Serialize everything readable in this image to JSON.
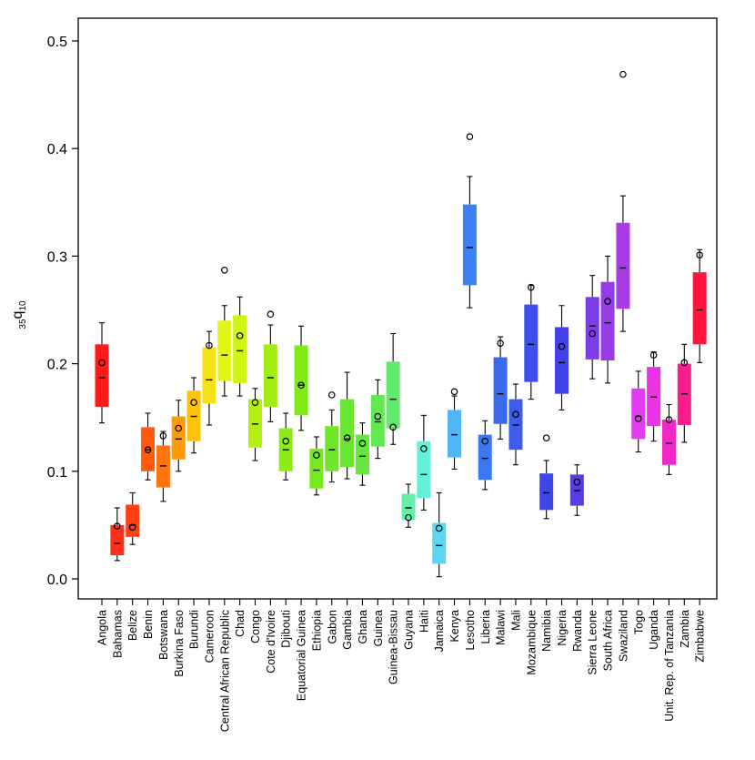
{
  "chart_data": {
    "type": "box",
    "title": "",
    "xlabel": "",
    "ylabel": {
      "base": "35",
      "main": "q",
      "sub": "10"
    },
    "ylim": [
      0.0,
      0.52
    ],
    "yticks": [
      "0.0",
      "0.1",
      "0.2",
      "0.3",
      "0.4",
      "0.5"
    ],
    "grid": false,
    "series": [
      {
        "name": "Angola",
        "color": "#FF1A1A",
        "whisker_low": 0.145,
        "q1": 0.16,
        "median": 0.187,
        "q3": 0.218,
        "whisker_high": 0.238,
        "point": 0.201
      },
      {
        "name": "Bahamas",
        "color": "#FF2E17",
        "whisker_low": 0.017,
        "q1": 0.022,
        "median": 0.033,
        "q3": 0.05,
        "whisker_high": 0.066,
        "point": 0.049
      },
      {
        "name": "Belize",
        "color": "#FF3F14",
        "whisker_low": 0.032,
        "q1": 0.039,
        "median": 0.05,
        "q3": 0.069,
        "whisker_high": 0.08,
        "point": 0.048
      },
      {
        "name": "Benin",
        "color": "#FF5A0F",
        "whisker_low": 0.092,
        "q1": 0.1,
        "median": 0.12,
        "q3": 0.141,
        "whisker_high": 0.154,
        "point": 0.12
      },
      {
        "name": "Botswana",
        "color": "#FF750C",
        "whisker_low": 0.072,
        "q1": 0.085,
        "median": 0.105,
        "q3": 0.124,
        "whisker_high": 0.137,
        "point": 0.133
      },
      {
        "name": "Burkina Faso",
        "color": "#FF9A0A",
        "whisker_low": 0.1,
        "q1": 0.111,
        "median": 0.13,
        "q3": 0.151,
        "whisker_high": 0.166,
        "point": 0.14
      },
      {
        "name": "Burundi",
        "color": "#FFC20A",
        "whisker_low": 0.117,
        "q1": 0.128,
        "median": 0.151,
        "q3": 0.175,
        "whisker_high": 0.187,
        "point": 0.164
      },
      {
        "name": "Cameroon",
        "color": "#F5E214",
        "whisker_low": 0.143,
        "q1": 0.163,
        "median": 0.185,
        "q3": 0.215,
        "whisker_high": 0.23,
        "point": 0.217
      },
      {
        "name": "Central African Republic",
        "color": "#E2F514",
        "whisker_low": 0.17,
        "q1": 0.184,
        "median": 0.208,
        "q3": 0.24,
        "whisker_high": 0.254,
        "point": 0.287
      },
      {
        "name": "Chad",
        "color": "#D0F514",
        "whisker_low": 0.17,
        "q1": 0.182,
        "median": 0.212,
        "q3": 0.245,
        "whisker_high": 0.262,
        "point": 0.226
      },
      {
        "name": "Congo",
        "color": "#B4EE14",
        "whisker_low": 0.11,
        "q1": 0.122,
        "median": 0.144,
        "q3": 0.167,
        "whisker_high": 0.177,
        "point": 0.164
      },
      {
        "name": "Cote d'Ivoire",
        "color": "#A0EE14",
        "whisker_low": 0.146,
        "q1": 0.16,
        "median": 0.187,
        "q3": 0.218,
        "whisker_high": 0.236,
        "point": 0.246
      },
      {
        "name": "Djibouti",
        "color": "#8EEB14",
        "whisker_low": 0.092,
        "q1": 0.1,
        "median": 0.12,
        "q3": 0.14,
        "whisker_high": 0.154,
        "point": 0.128
      },
      {
        "name": "Equatorial Guinea",
        "color": "#80EB14",
        "whisker_low": 0.138,
        "q1": 0.152,
        "median": 0.18,
        "q3": 0.217,
        "whisker_high": 0.235,
        "point": 0.18
      },
      {
        "name": "Ethiopia",
        "color": "#78E81E",
        "whisker_low": 0.078,
        "q1": 0.084,
        "median": 0.101,
        "q3": 0.121,
        "whisker_high": 0.132,
        "point": 0.115
      },
      {
        "name": "Gabon",
        "color": "#70E628",
        "whisker_low": 0.09,
        "q1": 0.1,
        "median": 0.12,
        "q3": 0.142,
        "whisker_high": 0.157,
        "point": 0.171
      },
      {
        "name": "Gambia",
        "color": "#6AE530",
        "whisker_low": 0.093,
        "q1": 0.104,
        "median": 0.13,
        "q3": 0.167,
        "whisker_high": 0.192,
        "point": 0.131
      },
      {
        "name": "Ghana",
        "color": "#66E63C",
        "whisker_low": 0.087,
        "q1": 0.097,
        "median": 0.114,
        "q3": 0.134,
        "whisker_high": 0.145,
        "point": 0.126
      },
      {
        "name": "Guinea",
        "color": "#62E850",
        "whisker_low": 0.112,
        "q1": 0.123,
        "median": 0.146,
        "q3": 0.171,
        "whisker_high": 0.185,
        "point": 0.151
      },
      {
        "name": "Guinea-Bissau",
        "color": "#62EA6A",
        "whisker_low": 0.125,
        "q1": 0.14,
        "median": 0.167,
        "q3": 0.202,
        "whisker_high": 0.228,
        "point": 0.141
      },
      {
        "name": "Guyana",
        "color": "#64EEA8",
        "whisker_low": 0.048,
        "q1": 0.055,
        "median": 0.066,
        "q3": 0.079,
        "whisker_high": 0.088,
        "point": 0.057
      },
      {
        "name": "Haiti",
        "color": "#64F0D8",
        "whisker_low": 0.064,
        "q1": 0.075,
        "median": 0.097,
        "q3": 0.128,
        "whisker_high": 0.152,
        "point": 0.121
      },
      {
        "name": "Jamaica",
        "color": "#5CD6F0",
        "whisker_low": 0.002,
        "q1": 0.014,
        "median": 0.031,
        "q3": 0.052,
        "whisker_high": 0.08,
        "point": 0.047
      },
      {
        "name": "Kenya",
        "color": "#50B4F5",
        "whisker_low": 0.102,
        "q1": 0.113,
        "median": 0.134,
        "q3": 0.157,
        "whisker_high": 0.17,
        "point": 0.174
      },
      {
        "name": "Lesotho",
        "color": "#3C82F5",
        "whisker_low": 0.252,
        "q1": 0.273,
        "median": 0.308,
        "q3": 0.348,
        "whisker_high": 0.374,
        "point": 0.411
      },
      {
        "name": "Liberia",
        "color": "#3A78F0",
        "whisker_low": 0.083,
        "q1": 0.092,
        "median": 0.112,
        "q3": 0.134,
        "whisker_high": 0.147,
        "point": 0.128
      },
      {
        "name": "Malawi",
        "color": "#3A6AEE",
        "whisker_low": 0.13,
        "q1": 0.144,
        "median": 0.172,
        "q3": 0.206,
        "whisker_high": 0.225,
        "point": 0.219
      },
      {
        "name": "Mali",
        "color": "#3C5CEE",
        "whisker_low": 0.106,
        "q1": 0.12,
        "median": 0.143,
        "q3": 0.167,
        "whisker_high": 0.181,
        "point": 0.153
      },
      {
        "name": "Mozambique",
        "color": "#3E4EEE",
        "whisker_low": 0.167,
        "q1": 0.183,
        "median": 0.218,
        "q3": 0.255,
        "whisker_high": 0.273,
        "point": 0.271
      },
      {
        "name": "Namibia",
        "color": "#3E46EA",
        "whisker_low": 0.056,
        "q1": 0.064,
        "median": 0.08,
        "q3": 0.098,
        "whisker_high": 0.11,
        "point": 0.131
      },
      {
        "name": "Nigeria",
        "color": "#4242EA",
        "whisker_low": 0.157,
        "q1": 0.172,
        "median": 0.201,
        "q3": 0.234,
        "whisker_high": 0.254,
        "point": 0.216
      },
      {
        "name": "Rwanda",
        "color": "#5A3CE6",
        "whisker_low": 0.059,
        "q1": 0.068,
        "median": 0.082,
        "q3": 0.097,
        "whisker_high": 0.106,
        "point": 0.09
      },
      {
        "name": "Sierra Leone",
        "color": "#7C3CE6",
        "whisker_low": 0.186,
        "q1": 0.204,
        "median": 0.235,
        "q3": 0.262,
        "whisker_high": 0.282,
        "point": 0.228
      },
      {
        "name": "South Africa",
        "color": "#963CE6",
        "whisker_low": 0.182,
        "q1": 0.203,
        "median": 0.238,
        "q3": 0.276,
        "whisker_high": 0.3,
        "point": 0.258
      },
      {
        "name": "Swaziland",
        "color": "#AA3CE6",
        "whisker_low": 0.23,
        "q1": 0.251,
        "median": 0.289,
        "q3": 0.331,
        "whisker_high": 0.356,
        "point": 0.469
      },
      {
        "name": "Togo",
        "color": "#E03CF0",
        "whisker_low": 0.118,
        "q1": 0.13,
        "median": 0.151,
        "q3": 0.177,
        "whisker_high": 0.193,
        "point": 0.149
      },
      {
        "name": "Uganda",
        "color": "#EC32E6",
        "whisker_low": 0.128,
        "q1": 0.142,
        "median": 0.169,
        "q3": 0.197,
        "whisker_high": 0.211,
        "point": 0.208
      },
      {
        "name": "Unit. Rep. of Tanzania",
        "color": "#F028C8",
        "whisker_low": 0.097,
        "q1": 0.106,
        "median": 0.126,
        "q3": 0.148,
        "whisker_high": 0.162,
        "point": 0.148
      },
      {
        "name": "Zambia",
        "color": "#F51E8C",
        "whisker_low": 0.127,
        "q1": 0.143,
        "median": 0.172,
        "q3": 0.2,
        "whisker_high": 0.218,
        "point": 0.201
      },
      {
        "name": "Zimbabwe",
        "color": "#FF1440",
        "whisker_low": 0.201,
        "q1": 0.218,
        "median": 0.25,
        "q3": 0.285,
        "whisker_high": 0.306,
        "point": 0.301
      }
    ]
  }
}
